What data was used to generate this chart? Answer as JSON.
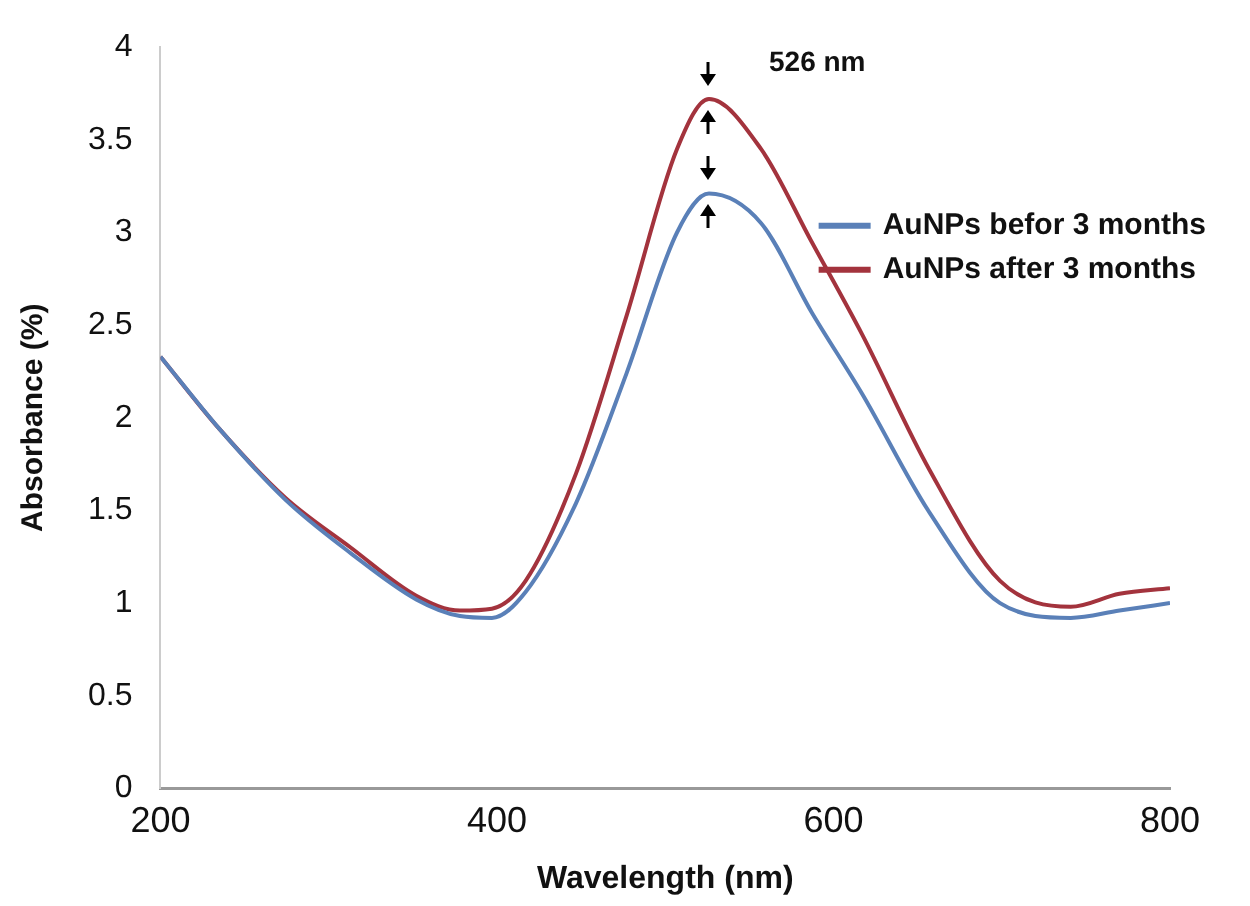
{
  "chart_data": {
    "type": "line",
    "xlabel": "Wavelength (nm)",
    "ylabel": "Absorbance (%)",
    "xlim": [
      200,
      800
    ],
    "xticks": [
      200,
      400,
      600,
      800
    ],
    "ylim": [
      0,
      4
    ],
    "yticks": [
      0,
      0.5,
      1,
      1.5,
      2,
      2.5,
      3,
      3.5,
      4
    ],
    "grid": false,
    "legend": "right",
    "marker": "none",
    "line_style": "solid",
    "annotations": [
      {
        "text": "526 nm",
        "x": 526,
        "y": 3.72
      }
    ],
    "series": [
      {
        "name": "AuNPs befor 3 months",
        "color": "#5a80b8",
        "x": [
          200,
          235,
          274,
          313,
          352,
          378,
          397,
          417,
          447,
          477,
          507,
          526,
          557,
          587,
          617,
          657,
          699,
          741,
          770,
          800
        ],
        "values": [
          2.33,
          1.94,
          1.56,
          1.27,
          1.02,
          0.93,
          0.92,
          1.06,
          1.54,
          2.24,
          3.0,
          3.21,
          3.05,
          2.57,
          2.13,
          1.49,
          1.0,
          0.92,
          0.96,
          1.0
        ]
      },
      {
        "name": "AuNPs after 3 months",
        "color": "#a3333d",
        "x": [
          200,
          235,
          274,
          313,
          352,
          378,
          397,
          417,
          447,
          477,
          507,
          526,
          557,
          587,
          617,
          657,
          699,
          741,
          770,
          800
        ],
        "values": [
          2.33,
          1.94,
          1.57,
          1.3,
          1.04,
          0.96,
          0.97,
          1.12,
          1.7,
          2.55,
          3.45,
          3.72,
          3.45,
          2.95,
          2.45,
          1.72,
          1.12,
          0.98,
          1.05,
          1.08
        ]
      }
    ]
  }
}
